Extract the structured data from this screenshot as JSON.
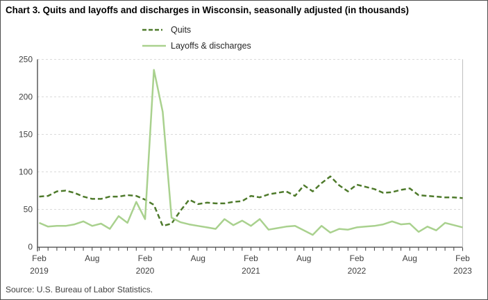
{
  "title": "Chart 3. Quits and layoffs and discharges in Wisconsin, seasonally adjusted (in thousands)",
  "source_note": "Source: U.S. Bureau of Labor Statistics.",
  "legend": {
    "quits_label": "Quits",
    "layoffs_label": "Layoffs & discharges"
  },
  "colors": {
    "quits": "#4e7a2b",
    "layoffs": "#a9d18e",
    "gridline": "#d9d9d9",
    "axis": "#404040",
    "tick_text": "#404040",
    "plot_right_border": "#bfbfbf"
  },
  "chart_data": {
    "type": "line",
    "title": "Chart 3. Quits and layoffs and discharges in Wisconsin, seasonally adjusted (in thousands)",
    "xlabel": "",
    "ylabel": "",
    "ylim": [
      0,
      250
    ],
    "y_ticks": [
      0,
      50,
      100,
      150,
      200,
      250
    ],
    "grid": "horizontal-dashed",
    "legend_position": "top-center",
    "months": [
      "Feb 2019",
      "Mar 2019",
      "Apr 2019",
      "May 2019",
      "Jun 2019",
      "Jul 2019",
      "Aug 2019",
      "Sep 2019",
      "Oct 2019",
      "Nov 2019",
      "Dec 2019",
      "Jan 2020",
      "Feb 2020",
      "Mar 2020",
      "Apr 2020",
      "May 2020",
      "Jun 2020",
      "Jul 2020",
      "Aug 2020",
      "Sep 2020",
      "Oct 2020",
      "Nov 2020",
      "Dec 2020",
      "Jan 2021",
      "Feb 2021",
      "Mar 2021",
      "Apr 2021",
      "May 2021",
      "Jun 2021",
      "Jul 2021",
      "Aug 2021",
      "Sep 2021",
      "Oct 2021",
      "Nov 2021",
      "Dec 2021",
      "Jan 2022",
      "Feb 2022",
      "Mar 2022",
      "Apr 2022",
      "May 2022",
      "Jun 2022",
      "Jul 2022",
      "Aug 2022",
      "Sep 2022",
      "Oct 2022",
      "Nov 2022",
      "Dec 2022",
      "Jan 2023",
      "Feb 2023"
    ],
    "x_tick_labels": [
      {
        "index": 0,
        "month": "Feb",
        "year": "2019"
      },
      {
        "index": 6,
        "month": "Aug",
        "year": ""
      },
      {
        "index": 12,
        "month": "Feb",
        "year": "2020"
      },
      {
        "index": 18,
        "month": "Aug",
        "year": ""
      },
      {
        "index": 24,
        "month": "Feb",
        "year": "2021"
      },
      {
        "index": 30,
        "month": "Aug",
        "year": ""
      },
      {
        "index": 36,
        "month": "Feb",
        "year": "2022"
      },
      {
        "index": 42,
        "month": "Aug",
        "year": ""
      },
      {
        "index": 48,
        "month": "Feb",
        "year": "2023"
      }
    ],
    "series": [
      {
        "name": "Quits",
        "style": "dashed",
        "color": "#4e7a2b",
        "values": [
          67,
          68,
          74,
          75,
          72,
          67,
          64,
          64,
          67,
          67,
          69,
          68,
          63,
          56,
          28,
          31,
          48,
          63,
          57,
          59,
          58,
          58,
          60,
          61,
          68,
          66,
          70,
          72,
          74,
          68,
          82,
          74,
          85,
          94,
          82,
          74,
          83,
          80,
          77,
          72,
          73,
          76,
          78,
          69,
          68,
          67,
          66,
          66,
          65
        ]
      },
      {
        "name": "Layoffs & discharges",
        "style": "solid",
        "color": "#a9d18e",
        "values": [
          32,
          27,
          28,
          28,
          30,
          34,
          28,
          31,
          24,
          41,
          32,
          60,
          37,
          236,
          180,
          39,
          33,
          30,
          28,
          26,
          24,
          37,
          29,
          35,
          28,
          37,
          23,
          25,
          27,
          28,
          22,
          16,
          28,
          19,
          24,
          23,
          26,
          27,
          28,
          30,
          34,
          30,
          31,
          20,
          27,
          22,
          32,
          29,
          26
        ]
      }
    ]
  }
}
